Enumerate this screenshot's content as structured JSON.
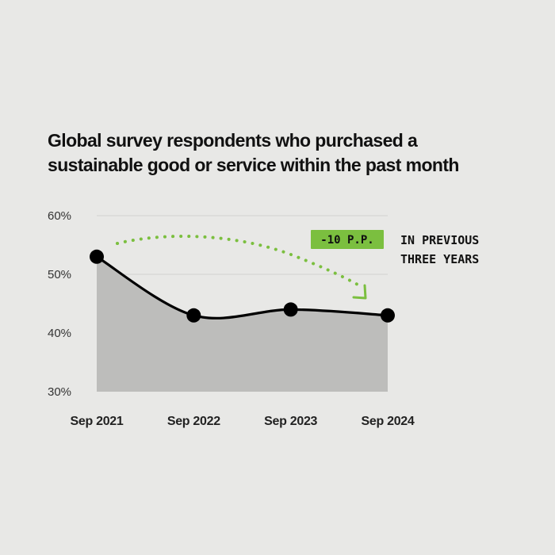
{
  "chart_data": {
    "type": "area",
    "title_lines": [
      "Global survey respondents who purchased a",
      "sustainable good or service within the past month"
    ],
    "categories": [
      "Sep 2021",
      "Sep 2022",
      "Sep 2023",
      "Sep 2024"
    ],
    "series": [
      {
        "values": [
          53,
          43,
          44,
          43
        ]
      }
    ],
    "ylim": [
      30,
      60
    ],
    "yticks": [
      30,
      40,
      50,
      60
    ],
    "ytick_labels": [
      "30%",
      "40%",
      "50%",
      "60%"
    ],
    "grid": true,
    "annotation": {
      "badge": "-10 P.P.",
      "text_lines": [
        "IN PREVIOUS",
        "THREE YEARS"
      ]
    }
  },
  "colors": {
    "background": "#e8e8e6",
    "area_fill": "#bdbdbb",
    "line": "#000000",
    "grid": "#d2d2d0",
    "accent_green": "#7bbf3f"
  }
}
